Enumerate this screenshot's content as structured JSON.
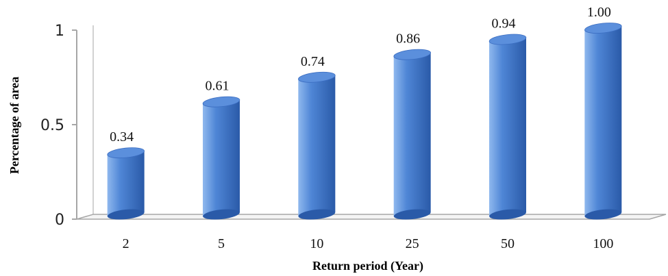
{
  "chart_data": {
    "type": "bar",
    "style": "3d-cylinder",
    "categories": [
      "2",
      "5",
      "10",
      "25",
      "50",
      "100"
    ],
    "values": [
      0.34,
      0.61,
      0.74,
      0.86,
      0.94,
      1.0
    ],
    "data_labels": [
      "0.34",
      "0.61",
      "0.74",
      "0.86",
      "0.94",
      "1.00"
    ],
    "xlabel": "Return period (Year)",
    "ylabel": "Percentage of area",
    "ylim": [
      0,
      1
    ],
    "yticks": [
      0,
      0.5,
      1
    ],
    "ytick_labels": [
      "0",
      "0.5",
      "1"
    ],
    "grid": false,
    "legend": "none",
    "colors": {
      "bar_light": "#8fb8ee",
      "bar_mid": "#4f86d6",
      "bar_dark": "#2a5aa8",
      "bar_top": "#5b8fdc",
      "axis": "#a6a6a6"
    }
  }
}
